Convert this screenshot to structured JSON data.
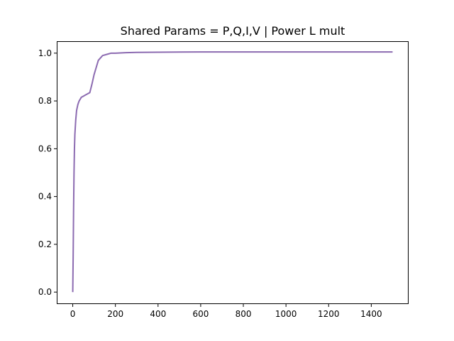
{
  "chart_data": {
    "type": "line",
    "title": "Shared Params = P,Q,I,V | Power L mult",
    "xlabel": "",
    "ylabel": "",
    "xlim": [
      -75,
      1575
    ],
    "ylim": [
      -0.05,
      1.05
    ],
    "xticks": [
      0,
      200,
      400,
      600,
      800,
      1000,
      1200,
      1400
    ],
    "xtick_labels": [
      "0",
      "200",
      "400",
      "600",
      "800",
      "1000",
      "1200",
      "1400"
    ],
    "yticks": [
      0.0,
      0.2,
      0.4,
      0.6,
      0.8,
      1.0
    ],
    "ytick_labels": [
      "0.0",
      "0.2",
      "0.4",
      "0.6",
      "0.8",
      "1.0"
    ],
    "grid": false,
    "legend": "none",
    "series": [
      {
        "color": "#8c6bb1",
        "x": [
          0,
          2,
          4,
          6,
          8,
          10,
          14,
          18,
          24,
          30,
          40,
          50,
          60,
          70,
          80,
          90,
          100,
          110,
          120,
          130,
          140,
          160,
          180,
          200,
          250,
          300,
          400,
          600,
          1000,
          1500
        ],
        "y": [
          0.0,
          0.15,
          0.35,
          0.5,
          0.6,
          0.66,
          0.72,
          0.76,
          0.785,
          0.8,
          0.815,
          0.82,
          0.825,
          0.83,
          0.835,
          0.87,
          0.91,
          0.94,
          0.97,
          0.98,
          0.99,
          0.995,
          1.0,
          1.0,
          1.002,
          1.003,
          1.004,
          1.005,
          1.005,
          1.005
        ]
      }
    ]
  }
}
